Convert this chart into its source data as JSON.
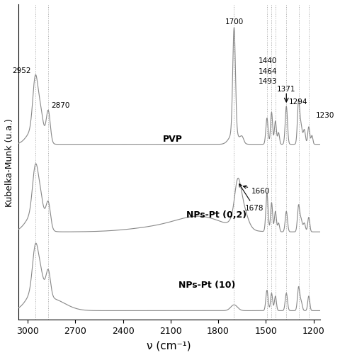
{
  "xlabel": "ν (cm⁻¹)",
  "ylabel": "Kubelka-Munk (u.a.)",
  "x_ticks": [
    3000,
    2700,
    2400,
    2100,
    1800,
    1500,
    1200
  ],
  "dashed_wavenumbers": [
    2952,
    2870,
    1700,
    1493,
    1464,
    1440,
    1371,
    1294,
    1230
  ],
  "label_pvp": "PVP",
  "label_nps02": "NPs-Pt (0,2)",
  "label_nps10": "NPs-Pt (10)",
  "line_color": "#888888",
  "background_color": "#ffffff",
  "pvp_baseline": 0.6,
  "nps02_baseline": 0.3,
  "nps10_baseline": 0.03
}
